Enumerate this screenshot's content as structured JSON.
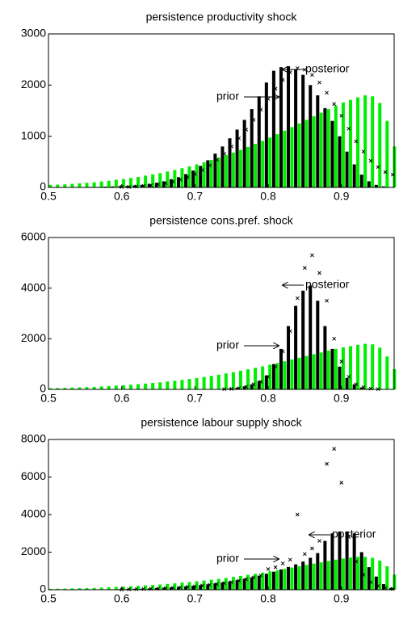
{
  "chart_data": [
    {
      "type": "bar",
      "title": "persistence productivity shock",
      "x": [
        0.5,
        0.51,
        0.52,
        0.53,
        0.54,
        0.55,
        0.56,
        0.57,
        0.58,
        0.59,
        0.6,
        0.61,
        0.62,
        0.63,
        0.64,
        0.65,
        0.66,
        0.67,
        0.68,
        0.69,
        0.7,
        0.71,
        0.72,
        0.73,
        0.74,
        0.75,
        0.76,
        0.77,
        0.78,
        0.79,
        0.8,
        0.81,
        0.82,
        0.83,
        0.84,
        0.85,
        0.86,
        0.87,
        0.88,
        0.89,
        0.9,
        0.91,
        0.92,
        0.93,
        0.94,
        0.95,
        0.96,
        0.97
      ],
      "series": [
        {
          "color": "#00ee00",
          "values": [
            50,
            55,
            60,
            70,
            80,
            90,
            100,
            115,
            130,
            150,
            165,
            185,
            205,
            230,
            255,
            280,
            310,
            340,
            375,
            410,
            450,
            490,
            535,
            580,
            630,
            680,
            735,
            790,
            850,
            910,
            975,
            1040,
            1110,
            1180,
            1250,
            1320,
            1390,
            1460,
            1530,
            1600,
            1660,
            1710,
            1760,
            1800,
            1780,
            1650,
            1300,
            800
          ]
        },
        {
          "color": "#000000",
          "values": [
            0,
            0,
            0,
            0,
            5,
            5,
            10,
            10,
            15,
            20,
            25,
            30,
            40,
            50,
            70,
            90,
            120,
            160,
            200,
            260,
            330,
            420,
            530,
            660,
            800,
            960,
            1130,
            1320,
            1530,
            1780,
            2050,
            2280,
            2350,
            2370,
            2300,
            2200,
            2000,
            1800,
            1550,
            1300,
            1000,
            700,
            450,
            250,
            120,
            50,
            20,
            5
          ]
        },
        {
          "color": "#000000",
          "marker": "x",
          "values": [
            0,
            0,
            0,
            0,
            0,
            0,
            0,
            0,
            0,
            0,
            10,
            10,
            20,
            30,
            40,
            60,
            80,
            110,
            150,
            200,
            260,
            340,
            430,
            540,
            660,
            800,
            960,
            1130,
            1320,
            1520,
            1730,
            1930,
            2100,
            2250,
            2330,
            2300,
            2200,
            2050,
            1850,
            1630,
            1400,
            1150,
            900,
            700,
            520,
            400,
            300,
            250
          ]
        }
      ],
      "annotations": [
        "prior",
        "posterior"
      ],
      "xlim": [
        0.5,
        0.972
      ],
      "xticks": [
        0.5,
        0.6,
        0.7,
        0.8,
        0.9
      ],
      "ylim": [
        0,
        3000
      ],
      "yticks": [
        0,
        1000,
        2000,
        3000
      ]
    },
    {
      "type": "bar",
      "title": "persistence cons.pref. shock",
      "x": [
        0.5,
        0.51,
        0.52,
        0.53,
        0.54,
        0.55,
        0.56,
        0.57,
        0.58,
        0.59,
        0.6,
        0.61,
        0.62,
        0.63,
        0.64,
        0.65,
        0.66,
        0.67,
        0.68,
        0.69,
        0.7,
        0.71,
        0.72,
        0.73,
        0.74,
        0.75,
        0.76,
        0.77,
        0.78,
        0.79,
        0.8,
        0.81,
        0.82,
        0.83,
        0.84,
        0.85,
        0.86,
        0.87,
        0.88,
        0.89,
        0.9,
        0.91,
        0.92,
        0.93,
        0.94,
        0.95,
        0.96,
        0.97
      ],
      "series": [
        {
          "color": "#00ee00",
          "values": [
            50,
            55,
            60,
            70,
            80,
            90,
            100,
            115,
            130,
            150,
            165,
            185,
            205,
            230,
            255,
            280,
            310,
            340,
            375,
            410,
            450,
            490,
            535,
            580,
            630,
            680,
            735,
            790,
            850,
            910,
            975,
            1040,
            1110,
            1180,
            1250,
            1320,
            1390,
            1460,
            1530,
            1600,
            1660,
            1710,
            1760,
            1800,
            1780,
            1650,
            1300,
            800
          ]
        },
        {
          "color": "#000000",
          "values": [
            0,
            0,
            0,
            0,
            0,
            0,
            0,
            0,
            0,
            0,
            0,
            0,
            0,
            0,
            0,
            0,
            0,
            0,
            0,
            0,
            0,
            0,
            5,
            10,
            20,
            40,
            70,
            120,
            200,
            330,
            550,
            1000,
            1600,
            2500,
            3300,
            3900,
            4100,
            3500,
            2500,
            1600,
            900,
            450,
            200,
            80,
            30,
            10,
            0,
            0
          ]
        },
        {
          "color": "#000000",
          "marker": "x",
          "values": [
            0,
            0,
            0,
            0,
            0,
            0,
            0,
            0,
            0,
            0,
            0,
            0,
            0,
            0,
            0,
            0,
            0,
            0,
            0,
            0,
            0,
            0,
            0,
            0,
            10,
            20,
            50,
            100,
            200,
            300,
            500,
            900,
            1500,
            2300,
            3600,
            4800,
            5300,
            4600,
            3500,
            2000,
            1100,
            500,
            200,
            80,
            30,
            10,
            0,
            0
          ]
        }
      ],
      "annotations": [
        "prior",
        "posterior"
      ],
      "xlim": [
        0.5,
        0.972
      ],
      "xticks": [
        0.5,
        0.6,
        0.7,
        0.8,
        0.9
      ],
      "ylim": [
        0,
        6000
      ],
      "yticks": [
        0,
        2000,
        4000,
        6000
      ]
    },
    {
      "type": "bar",
      "title": "persistence labour supply shock",
      "x": [
        0.5,
        0.51,
        0.52,
        0.53,
        0.54,
        0.55,
        0.56,
        0.57,
        0.58,
        0.59,
        0.6,
        0.61,
        0.62,
        0.63,
        0.64,
        0.65,
        0.66,
        0.67,
        0.68,
        0.69,
        0.7,
        0.71,
        0.72,
        0.73,
        0.74,
        0.75,
        0.76,
        0.77,
        0.78,
        0.79,
        0.8,
        0.81,
        0.82,
        0.83,
        0.84,
        0.85,
        0.86,
        0.87,
        0.88,
        0.89,
        0.9,
        0.91,
        0.92,
        0.93,
        0.94,
        0.95,
        0.96,
        0.97
      ],
      "series": [
        {
          "color": "#00ee00",
          "values": [
            50,
            55,
            60,
            70,
            80,
            90,
            100,
            115,
            130,
            150,
            165,
            185,
            205,
            230,
            255,
            280,
            310,
            340,
            375,
            410,
            450,
            490,
            535,
            580,
            630,
            680,
            735,
            790,
            850,
            910,
            975,
            1040,
            1110,
            1180,
            1250,
            1320,
            1390,
            1460,
            1530,
            1600,
            1660,
            1710,
            1750,
            1750,
            1700,
            1550,
            1250,
            800
          ]
        },
        {
          "color": "#000000",
          "values": [
            0,
            0,
            0,
            5,
            5,
            10,
            10,
            15,
            20,
            25,
            30,
            40,
            50,
            60,
            70,
            90,
            110,
            130,
            150,
            180,
            210,
            250,
            290,
            340,
            390,
            450,
            510,
            580,
            660,
            750,
            850,
            960,
            1080,
            1210,
            1350,
            1500,
            1700,
            1950,
            2600,
            3000,
            3100,
            3100,
            3000,
            2000,
            1200,
            700,
            300,
            100
          ]
        },
        {
          "color": "#000000",
          "marker": "x",
          "values": [
            0,
            0,
            0,
            0,
            0,
            0,
            0,
            0,
            0,
            0,
            10,
            20,
            30,
            40,
            50,
            60,
            80,
            100,
            120,
            150,
            180,
            220,
            260,
            300,
            350,
            400,
            480,
            560,
            650,
            750,
            1100,
            1200,
            1400,
            1600,
            4000,
            1900,
            2200,
            2600,
            6700,
            7500,
            5700,
            2800,
            1500,
            800,
            400,
            200,
            100,
            50
          ]
        }
      ],
      "annotations": [
        "prior",
        "posterior"
      ],
      "xlim": [
        0.5,
        0.972
      ],
      "xticks": [
        0.5,
        0.6,
        0.7,
        0.8,
        0.9
      ],
      "ylim": [
        0,
        8000
      ],
      "yticks": [
        0,
        2000,
        4000,
        6000,
        8000
      ]
    }
  ]
}
